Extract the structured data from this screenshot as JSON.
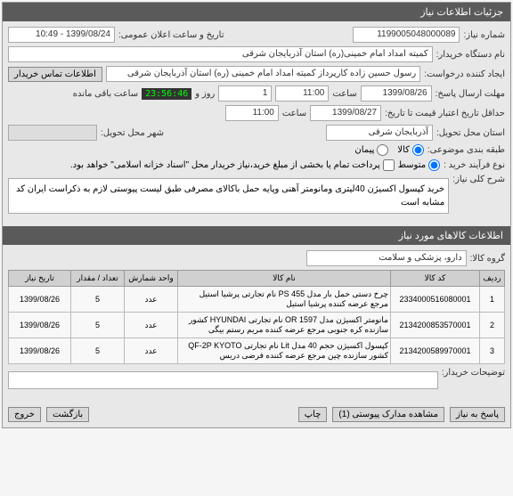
{
  "panels": {
    "top_title": "جزئیات اطلاعات نیاز",
    "items_title": "اطلاعات کالاهای مورد نیاز"
  },
  "header": {
    "req_no_label": "شماره نیاز:",
    "req_no": "1199005048000089",
    "date_label": "تاریخ و ساعت اعلان عمومی:",
    "date": "1399/08/24 - 10:49",
    "buyer_label": "نام دستگاه خریدار:",
    "buyer": "کمیته امداد امام خمینی(ره) استان آذربایجان شرقی",
    "creator_label": "ایجاد کننده درخواست:",
    "creator": "رسول  حسین زاده  کارپرداز کمیته امداد امام خمینی (ره) استان آذربایجان شرقی",
    "contact_btn": "اطلاعات تماس خریدار",
    "deadline_label": "مهلت ارسال پاسخ:",
    "deadline_date": "1399/08/26",
    "deadline_hour_label": "ساعت",
    "deadline_hour": "11:00",
    "remain_days": "1",
    "remain_days_label": "روز و",
    "timer": "23:56:46",
    "remain_label": "ساعت باقی مانده",
    "validity_label": "حداقل تاریخ اعتبار قیمت تا تاریخ:",
    "validity_date": "1399/08/27",
    "validity_hour": "11:00",
    "delivery_loc_label": "استان محل تحویل:",
    "delivery_loc": "آذربایجان شرقی",
    "delivery_city_label": "شهر محل تحویل:",
    "budget_label": "طبقه بندی موضوعی:",
    "budget_goods": "کالا",
    "budget_service": "پیمان",
    "process_label": "نوع فرآیند خرید :",
    "process_mid": "متوسط",
    "process_note": "پرداخت تمام یا بخشی از مبلغ خرید،نیاز خریدار محل \"اسناد خزانه اسلامی\" خواهد بود.",
    "summary_label": "شرح کلی نیاز:",
    "summary": "خرید کپسول اکسیژن 40لیتری ومانومتر آهنی  وپایه حمل باکالای مصرفی طبق لیست پیوستی لازم به ذکراست ایران کد مشابه است"
  },
  "items": {
    "group_label": "گروه کالا:",
    "group": "دارو، پزشکی و سلامت",
    "columns": [
      "ردیف",
      "کد کالا",
      "نام کالا",
      "واحد شمارش",
      "تعداد / مقدار",
      "تاریخ نیاز"
    ],
    "rows": [
      [
        "1",
        "2334000516080001",
        "چرخ دستی حمل بار مدل PS 455 نام تجارتی پرشیا استیل مرجع عرضه کننده پرشیا استیل",
        "عدد",
        "5",
        "1399/08/26"
      ],
      [
        "2",
        "2134200853570001",
        "مانومتر اکسیژن مدل OR 1597 نام تجارتی HYUNDAI کشور سازنده کره جنوبی مرجع عرضه کننده مریم رستم بیگی",
        "عدد",
        "5",
        "1399/08/26"
      ],
      [
        "3",
        "2134200589970001",
        "کپسول اکسیژن حجم 40 مدل Lit نام تجارتی QF-2P KYOTO کشور سازنده چین مرجع عرضه کننده فرضی دریس",
        "عدد",
        "5",
        "1399/08/26"
      ]
    ],
    "buyer_notes_label": "توضیحات خریدار:"
  },
  "footer": {
    "reply": "پاسخ به نیاز",
    "attachments": "مشاهده مدارک پیوستی (1)",
    "print": "چاپ",
    "back": "بازگشت",
    "exit": "خروج"
  }
}
